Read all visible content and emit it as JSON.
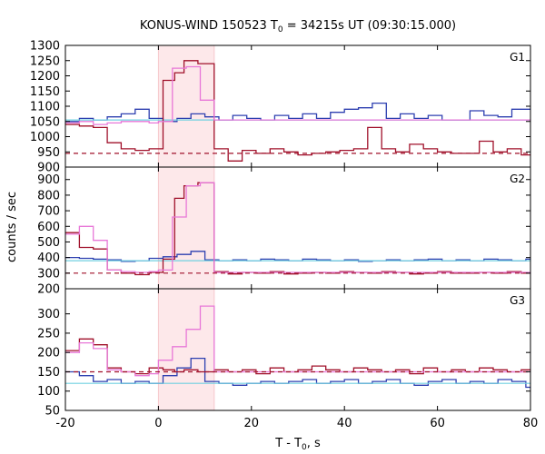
{
  "chart_data": {
    "type": "line",
    "title_main": "KONUS-WIND 150523 T",
    "title_sub": "0",
    "title_rest": " = 34215s UT (09:30:15.000)",
    "xlabel_main": "T - T",
    "xlabel_sub": "0",
    "xlabel_rest": ", s",
    "ylabel": "counts / sec",
    "xlim": [
      -20,
      80
    ],
    "x_ticks": [
      "-20",
      "0",
      "20",
      "40",
      "60",
      "80"
    ],
    "shaded_region": [
      0,
      12
    ],
    "colors": {
      "dark_red": "#a0102a",
      "blue": "#2d3fb0",
      "pink": "#e878d8",
      "cyan": "#70d0e0",
      "shade": "#fde8ea"
    },
    "panels": [
      {
        "name": "G1",
        "ylim": [
          900,
          1300
        ],
        "y_ticks": [
          "900",
          "950",
          "1000",
          "1050",
          "1100",
          "1150",
          "1200",
          "1250",
          "1300"
        ],
        "series": [
          {
            "color": "blue",
            "style": "step",
            "x": [
              -20,
              -17,
              -14,
              -11,
              -8,
              -5,
              -2,
              1,
              4,
              7,
              10,
              13,
              16,
              19,
              22,
              25,
              28,
              31,
              34,
              37,
              40,
              43,
              46,
              49,
              52,
              55,
              58,
              61,
              64,
              67,
              70,
              73,
              76,
              79,
              80
            ],
            "y": [
              1050,
              1060,
              1055,
              1065,
              1075,
              1090,
              1060,
              1050,
              1060,
              1075,
              1065,
              1055,
              1070,
              1060,
              1055,
              1070,
              1060,
              1075,
              1060,
              1080,
              1090,
              1095,
              1110,
              1060,
              1075,
              1060,
              1070,
              1055,
              1055,
              1085,
              1070,
              1065,
              1090,
              1090,
              1090
            ]
          },
          {
            "color": "cyan",
            "style": "flat",
            "x": [
              -20,
              80
            ],
            "y": [
              1055,
              1055
            ]
          },
          {
            "color": "dark_red",
            "style": "step",
            "x": [
              -20,
              -17,
              -14,
              -11,
              -8,
              -5,
              -2,
              1,
              3.5,
              5.5,
              8.5,
              12,
              15,
              18,
              21,
              24,
              27,
              30,
              33,
              36,
              39,
              42,
              45,
              48,
              51,
              54,
              57,
              60,
              63,
              66,
              69,
              72,
              75,
              78,
              80
            ],
            "y": [
              1040,
              1035,
              1030,
              980,
              960,
              955,
              960,
              1185,
              1210,
              1250,
              1240,
              960,
              920,
              955,
              945,
              960,
              950,
              940,
              945,
              950,
              955,
              960,
              1030,
              960,
              950,
              975,
              960,
              950,
              945,
              945,
              985,
              950,
              960,
              940,
              940
            ]
          },
          {
            "color": "pink",
            "style": "step",
            "x": [
              -20,
              -17,
              -14,
              -11,
              -8,
              -5,
              -2,
              0,
              3,
              6,
              9,
              12,
              80
            ],
            "y": [
              1045,
              1050,
              1040,
              1045,
              1050,
              1050,
              1045,
              1050,
              1225,
              1230,
              1120,
              1055,
              1055
            ]
          },
          {
            "color": "dark_red",
            "style": "dashed",
            "x": [
              -20,
              80
            ],
            "y": [
              945,
              945
            ]
          }
        ]
      },
      {
        "name": "G2",
        "ylim": [
          200,
          980
        ],
        "y_ticks": [
          "200",
          "300",
          "400",
          "500",
          "600",
          "700",
          "800",
          "900"
        ],
        "series": [
          {
            "color": "blue",
            "style": "step",
            "x": [
              -20,
              -17,
              -14,
              -11,
              -8,
              -5,
              -2,
              1,
              4,
              7,
              10,
              13,
              16,
              19,
              22,
              25,
              28,
              31,
              34,
              37,
              40,
              43,
              46,
              49,
              52,
              55,
              58,
              61,
              64,
              67,
              70,
              73,
              76,
              79,
              80
            ],
            "y": [
              400,
              395,
              390,
              385,
              375,
              380,
              395,
              405,
              420,
              440,
              385,
              380,
              385,
              380,
              390,
              385,
              380,
              390,
              385,
              380,
              385,
              375,
              380,
              385,
              380,
              385,
              390,
              380,
              385,
              380,
              390,
              385,
              380,
              390,
              390
            ]
          },
          {
            "color": "cyan",
            "style": "flat",
            "x": [
              -20,
              80
            ],
            "y": [
              380,
              380
            ]
          },
          {
            "color": "dark_red",
            "style": "step",
            "x": [
              -20,
              -17,
              -14,
              -11,
              -8,
              -5,
              -2,
              1,
              3.5,
              5.5,
              8.5,
              12,
              15,
              18,
              21,
              24,
              27,
              30,
              33,
              36,
              39,
              42,
              45,
              48,
              51,
              54,
              57,
              60,
              63,
              66,
              69,
              72,
              75,
              78,
              80
            ],
            "y": [
              560,
              465,
              455,
              320,
              300,
              290,
              305,
              390,
              780,
              860,
              880,
              310,
              295,
              305,
              300,
              310,
              295,
              300,
              305,
              300,
              310,
              305,
              300,
              310,
              305,
              295,
              300,
              310,
              300,
              300,
              305,
              300,
              310,
              300,
              300
            ]
          },
          {
            "color": "pink",
            "style": "step",
            "x": [
              -20,
              -17,
              -14,
              -11,
              -8,
              -5,
              -2,
              0,
              3,
              6,
              9,
              12,
              80
            ],
            "y": [
              550,
              600,
              510,
              320,
              310,
              305,
              310,
              320,
              660,
              860,
              880,
              305,
              300
            ]
          },
          {
            "color": "dark_red",
            "style": "dashed",
            "x": [
              -20,
              80
            ],
            "y": [
              300,
              300
            ]
          }
        ]
      },
      {
        "name": "G3",
        "ylim": [
          50,
          365
        ],
        "y_ticks": [
          "50",
          "100",
          "150",
          "200",
          "250",
          "300"
        ],
        "series": [
          {
            "color": "blue",
            "style": "step",
            "x": [
              -20,
              -17,
              -14,
              -11,
              -8,
              -5,
              -2,
              1,
              4,
              7,
              10,
              13,
              16,
              19,
              22,
              25,
              28,
              31,
              34,
              37,
              40,
              43,
              46,
              49,
              52,
              55,
              58,
              61,
              64,
              67,
              70,
              73,
              76,
              79,
              80
            ],
            "y": [
              150,
              140,
              125,
              130,
              120,
              125,
              120,
              140,
              160,
              185,
              125,
              120,
              115,
              120,
              125,
              120,
              125,
              130,
              120,
              125,
              130,
              120,
              125,
              130,
              120,
              115,
              125,
              130,
              120,
              125,
              120,
              130,
              125,
              110,
              110
            ]
          },
          {
            "color": "cyan",
            "style": "flat",
            "x": [
              -20,
              80
            ],
            "y": [
              120,
              120
            ]
          },
          {
            "color": "dark_red",
            "style": "step",
            "x": [
              -20,
              -17,
              -14,
              -11,
              -8,
              -5,
              -2,
              1,
              3.5,
              5.5,
              8.5,
              12,
              15,
              18,
              21,
              24,
              27,
              30,
              33,
              36,
              39,
              42,
              45,
              48,
              51,
              54,
              57,
              60,
              63,
              66,
              69,
              72,
              75,
              78,
              80
            ],
            "y": [
              205,
              235,
              220,
              160,
              150,
              145,
              160,
              155,
              150,
              155,
              150,
              155,
              150,
              155,
              145,
              160,
              150,
              155,
              165,
              155,
              150,
              160,
              155,
              150,
              155,
              145,
              160,
              150,
              155,
              150,
              160,
              155,
              150,
              155,
              155
            ]
          },
          {
            "color": "pink",
            "style": "step",
            "x": [
              -20,
              -17,
              -14,
              -11,
              -8,
              -5,
              -2,
              0,
              3,
              6,
              9,
              12,
              80
            ],
            "y": [
              200,
              225,
              210,
              155,
              150,
              140,
              145,
              180,
              215,
              260,
              320,
              150,
              150
            ]
          },
          {
            "color": "dark_red",
            "style": "dashed",
            "x": [
              -20,
              80
            ],
            "y": [
              150,
              150
            ]
          }
        ]
      }
    ]
  }
}
